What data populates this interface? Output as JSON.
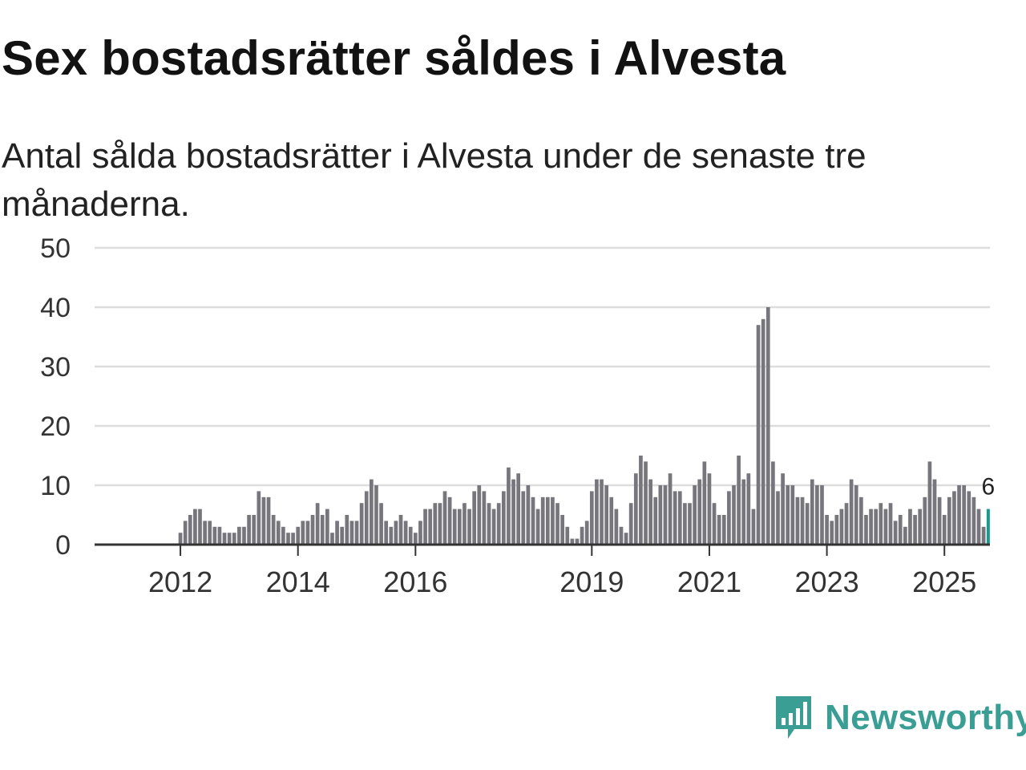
{
  "chart_data": {
    "type": "bar",
    "title": "Sex bostadsrätter såldes i Alvesta",
    "subtitle": "Antal sålda bostadsrätter i Alvesta under de senaste tre månaderna.",
    "xlabel": "",
    "ylabel": "",
    "ylim": [
      0,
      50
    ],
    "yticks": [
      0,
      10,
      20,
      30,
      40,
      50
    ],
    "xtick_labels": [
      "2012",
      "2014",
      "2016",
      "2019",
      "2021",
      "2023",
      "2025"
    ],
    "start": "2011-01",
    "frequency": "monthly",
    "values": [
      0,
      0,
      0,
      0,
      0,
      0,
      0,
      0,
      0,
      0,
      0,
      0,
      2,
      4,
      5,
      6,
      6,
      4,
      4,
      3,
      3,
      2,
      2,
      2,
      3,
      3,
      5,
      5,
      9,
      8,
      8,
      5,
      4,
      3,
      2,
      2,
      3,
      4,
      4,
      5,
      7,
      5,
      6,
      2,
      4,
      3,
      5,
      4,
      4,
      7,
      9,
      11,
      10,
      7,
      4,
      3,
      4,
      5,
      4,
      3,
      2,
      4,
      6,
      6,
      7,
      7,
      9,
      8,
      6,
      6,
      7,
      6,
      9,
      10,
      9,
      7,
      6,
      7,
      9,
      13,
      11,
      12,
      9,
      10,
      8,
      6,
      8,
      8,
      8,
      7,
      5,
      3,
      1,
      1,
      3,
      4,
      9,
      11,
      11,
      10,
      8,
      6,
      3,
      2,
      7,
      12,
      15,
      14,
      11,
      8,
      10,
      10,
      12,
      9,
      9,
      7,
      7,
      10,
      11,
      14,
      12,
      7,
      5,
      5,
      9,
      10,
      15,
      11,
      12,
      6,
      37,
      38,
      40,
      14,
      9,
      12,
      10,
      10,
      8,
      8,
      7,
      11,
      10,
      10,
      5,
      4,
      5,
      6,
      7,
      11,
      10,
      8,
      5,
      6,
      6,
      7,
      6,
      7,
      4,
      5,
      3,
      6,
      5,
      6,
      8,
      14,
      11,
      8,
      5,
      8,
      9,
      10,
      10,
      9,
      8,
      6,
      3,
      6
    ],
    "highlight": {
      "label": "6",
      "value": 6,
      "color": "#1a9a8c"
    },
    "bar_color": "#77767c",
    "grid": true
  },
  "brand": {
    "name": "Newsworthy",
    "color": "#3a9e95"
  }
}
